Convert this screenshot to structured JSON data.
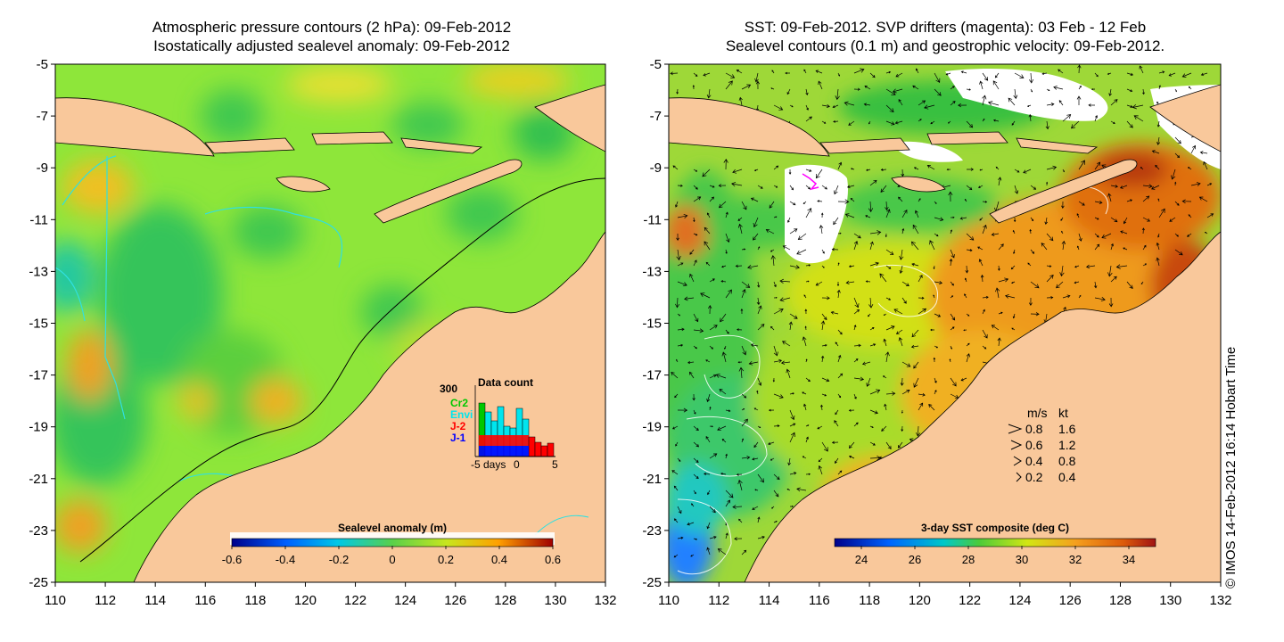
{
  "left_panel": {
    "title_line1": "Atmospheric pressure contours (2 hPa): 09-Feb-2012",
    "title_line2": "Isostatically adjusted sealevel anomaly: 09-Feb-2012",
    "colorbar": {
      "label": "Sealevel anomaly (m)",
      "ticks": [
        "-0.6",
        "-0.4",
        "-0.2",
        "0",
        "0.2",
        "0.4",
        "0.6"
      ],
      "range": [
        -0.6,
        0.6
      ]
    },
    "data_count": {
      "title": "Data count",
      "max_label": "300",
      "legend": [
        {
          "name": "Cr2",
          "color": "#00c800"
        },
        {
          "name": "Envi",
          "color": "#00e5ee"
        },
        {
          "name": "J-2",
          "color": "#ff0000"
        },
        {
          "name": "J-1",
          "color": "#0000ff"
        }
      ],
      "x_ticks": [
        "-5",
        "0",
        "5"
      ],
      "x_label": "days"
    }
  },
  "right_panel": {
    "title_line1": "SST: 09-Feb-2012. SVP drifters (magenta): 03 Feb - 12 Feb",
    "title_line2": "Sealevel contours (0.1 m) and geostrophic velocity: 09-Feb-2012.",
    "colorbar": {
      "label": "3-day SST composite (deg C)",
      "ticks": [
        "24",
        "26",
        "28",
        "30",
        "32",
        "34"
      ],
      "range": [
        23,
        35
      ]
    },
    "velocity_legend": {
      "header_ms": "m/s",
      "header_kt": "kt",
      "rows": [
        {
          "ms": "0.8",
          "kt": "1.6"
        },
        {
          "ms": "0.6",
          "kt": "1.2"
        },
        {
          "ms": "0.4",
          "kt": "0.8"
        },
        {
          "ms": "0.2",
          "kt": "0.4"
        }
      ]
    }
  },
  "axes": {
    "x_ticks": [
      "110",
      "112",
      "114",
      "116",
      "118",
      "120",
      "122",
      "124",
      "126",
      "128",
      "130",
      "132"
    ],
    "y_ticks": [
      "-5",
      "-7",
      "-9",
      "-11",
      "-13",
      "-15",
      "-17",
      "-19",
      "-21",
      "-23",
      "-25"
    ],
    "lon_range": [
      110,
      132
    ],
    "lat_range": [
      -25,
      -5
    ]
  },
  "credit": "© IMOS 14-Feb-2012 16:14 Hobart Time",
  "colors": {
    "land": "#f9c89b",
    "sst_warm": "#e98a1a",
    "sst_cool": "#43c84a",
    "sla_base": "#8ee63a"
  }
}
